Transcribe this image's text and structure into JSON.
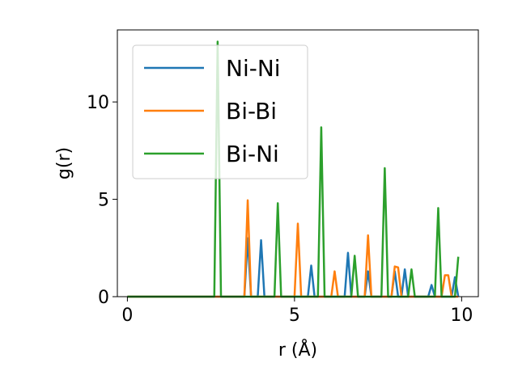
{
  "chart_data": {
    "type": "line",
    "title": "",
    "xlabel": "r (Å)",
    "ylabel": "g(r)",
    "xlim": [
      -0.3,
      10.5
    ],
    "ylim": [
      0,
      13.7
    ],
    "xticks": [
      0,
      5,
      10
    ],
    "yticks": [
      0,
      5,
      10
    ],
    "grid": false,
    "legend_position": "top-left",
    "series": [
      {
        "name": "Ni-Ni",
        "color": "#1f77b4",
        "x": [
          0,
          3.5,
          3.6,
          3.7,
          3.9,
          4.0,
          4.1,
          5.4,
          5.5,
          5.6,
          6.5,
          6.6,
          6.7,
          7.1,
          7.2,
          7.3,
          7.9,
          8.0,
          8.1,
          8.2,
          8.3,
          8.4,
          9.0,
          9.1,
          9.2,
          9.7,
          9.8,
          9.9
        ],
        "y": [
          0,
          0,
          3.0,
          0,
          0,
          2.9,
          0,
          0,
          1.6,
          0,
          0,
          2.25,
          0,
          0,
          1.3,
          0,
          0,
          1.3,
          0,
          0,
          1.4,
          0,
          0,
          0.6,
          0,
          0,
          1.0,
          0
        ]
      },
      {
        "name": "Bi-Bi",
        "color": "#ff7f0e",
        "x": [
          0,
          3.5,
          3.6,
          3.7,
          5.0,
          5.1,
          5.2,
          6.1,
          6.2,
          6.3,
          7.1,
          7.2,
          7.3,
          7.9,
          8.0,
          8.1,
          8.2,
          9.4,
          9.5,
          9.6,
          9.7,
          9.9
        ],
        "y": [
          0,
          0,
          4.95,
          0,
          0,
          3.75,
          0,
          0,
          1.3,
          0,
          0,
          3.15,
          0,
          0,
          1.55,
          1.5,
          0,
          0,
          1.1,
          1.1,
          0,
          0
        ]
      },
      {
        "name": "Bi-Ni",
        "color": "#2ca02c",
        "x": [
          0,
          2.6,
          2.7,
          2.8,
          4.4,
          4.5,
          4.6,
          5.7,
          5.8,
          5.9,
          6.7,
          6.8,
          6.9,
          7.6,
          7.7,
          7.8,
          8.4,
          8.5,
          8.6,
          9.2,
          9.3,
          9.4,
          9.8,
          9.9
        ],
        "y": [
          0,
          0,
          13.1,
          0,
          0,
          4.8,
          0,
          0,
          8.7,
          0,
          0,
          2.1,
          0,
          0,
          6.6,
          0,
          0,
          1.4,
          0,
          0,
          4.55,
          0,
          0,
          2.05
        ]
      }
    ]
  }
}
